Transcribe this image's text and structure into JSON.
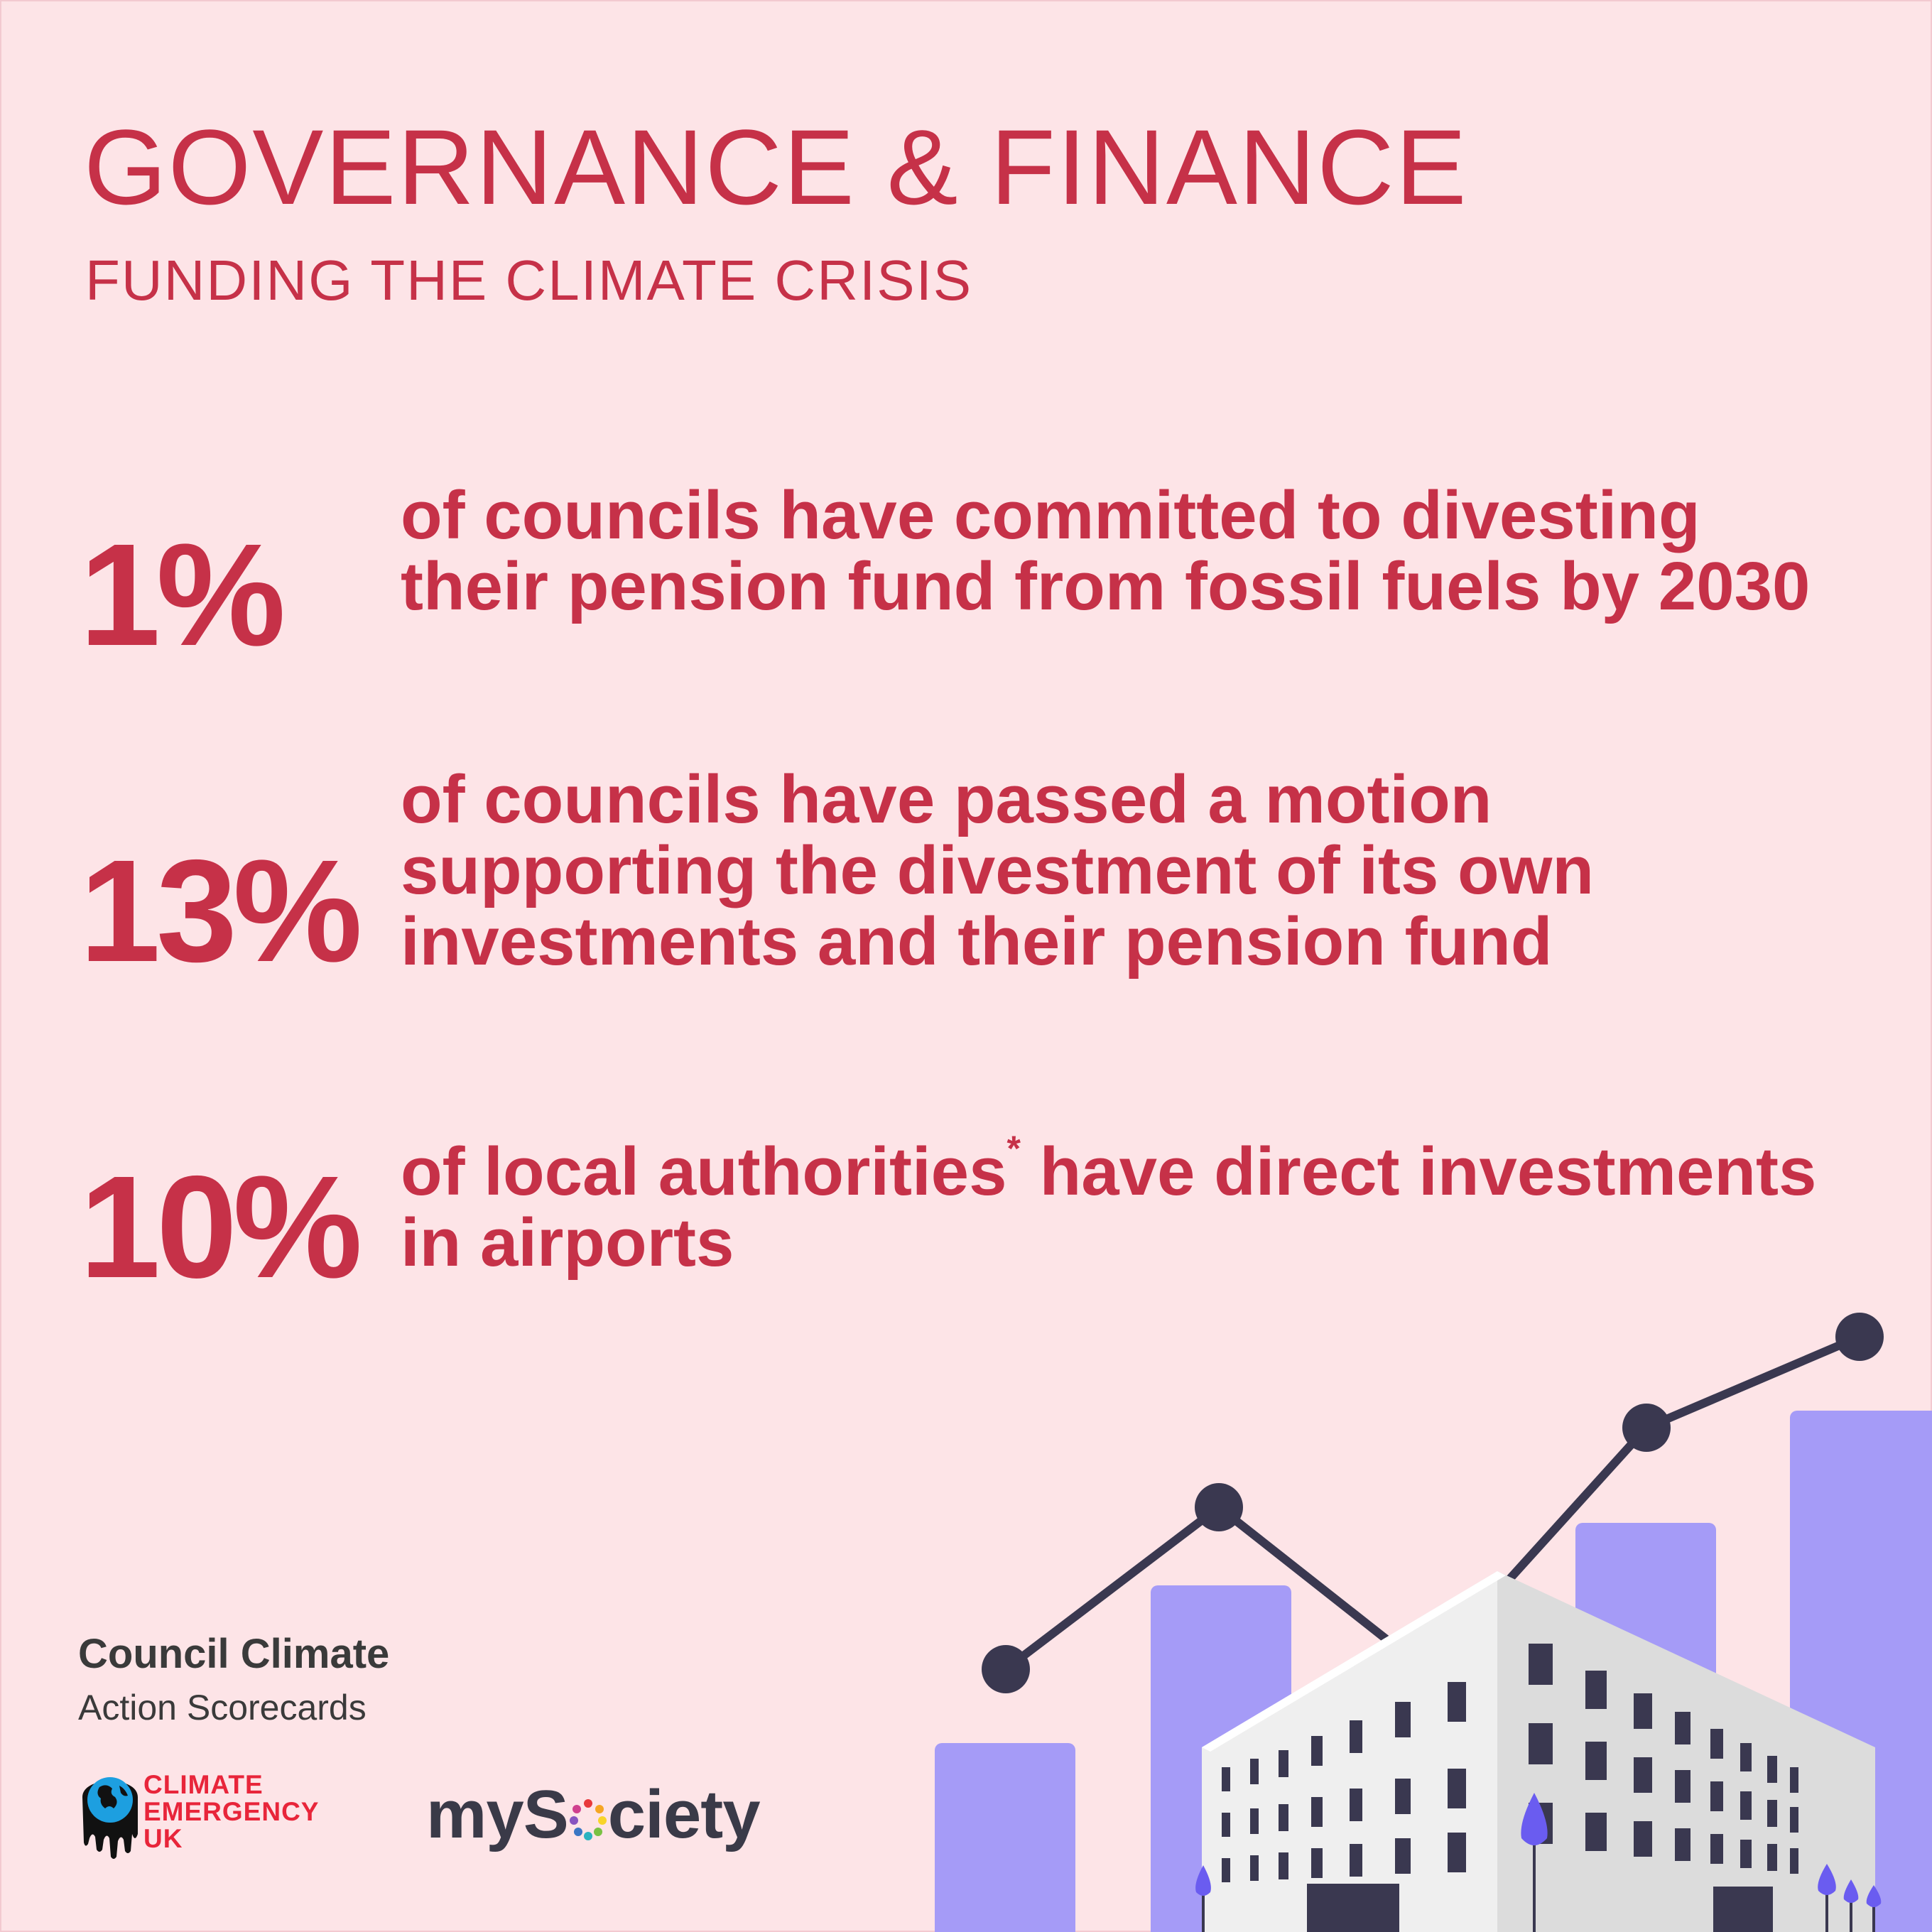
{
  "header": {
    "title": "GOVERNANCE & FINANCE",
    "subtitle": "FUNDING THE CLIMATE CRISIS"
  },
  "stats": [
    {
      "value": "1%",
      "text": "of councils have committed to divesting their pension fund from fossil fuels by 2030"
    },
    {
      "value": "13%",
      "text": "of councils have passed a motion supporting the divestment of its own investments and their pension fund"
    },
    {
      "value": "10%",
      "text_before": "of local authorities",
      "marker": "*",
      "text_after": " have direct investments in airports"
    }
  ],
  "branding": {
    "scorecards_line1": "Council Climate",
    "scorecards_line2": "Action Scorecards",
    "ceuk_line1": "CLIMATE",
    "ceuk_line2": "EMERGENCY",
    "ceuk_line3": "UK",
    "mysociety_a": "myS",
    "mysociety_b": "ciety"
  },
  "colors": {
    "background": "#fde4e7",
    "accent": "#c63148",
    "bars": "#a59bf7",
    "line": "#3a3850",
    "building": "#f0f0f0"
  },
  "icons": [
    "globe-icon",
    "building-illustration",
    "trend-line-icon",
    "tree-icon"
  ]
}
